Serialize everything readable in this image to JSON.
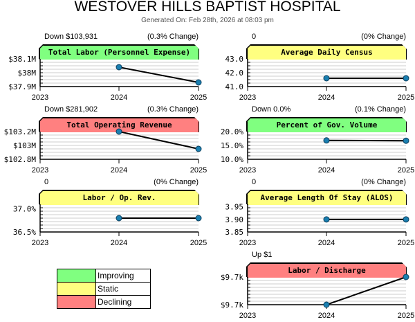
{
  "title": "WESTOVER HILLS BAPTIST HOSPITAL",
  "generated": "Generated On: Feb 28th, 2026 at 08:03 pm",
  "colors": {
    "Improving": "#80ff80",
    "Static": "#ffff80",
    "Declining": "#ff8080"
  },
  "legend": [
    {
      "label": "Improving",
      "color": "#80ff80"
    },
    {
      "label": "Static",
      "color": "#ffff80"
    },
    {
      "label": "Declining",
      "color": "#ff8080"
    }
  ],
  "chart_data": [
    {
      "type": "line",
      "title": "Total Labor (Personnel Expense)",
      "change": "Down $103,931",
      "pct": "(0.3% Change)",
      "status": "Improving",
      "x": [
        "2023",
        "2024",
        "2025"
      ],
      "y": [
        null,
        38.04,
        37.93
      ],
      "ylim": [
        37.9,
        38.1
      ],
      "yticks": [
        {
          "v": 38.1,
          "l": "$38.1M"
        },
        {
          "v": 38.0,
          "l": "$38M"
        },
        {
          "v": 37.9,
          "l": "$37.9M"
        }
      ]
    },
    {
      "type": "line",
      "title": "Average Daily Census",
      "change": "0",
      "pct": "(0% Change)",
      "status": "Static",
      "x": [
        "2023",
        "2024",
        "2025"
      ],
      "y": [
        null,
        41.6,
        41.6
      ],
      "ylim": [
        41,
        43
      ],
      "yticks": [
        {
          "v": 43,
          "l": "43.0"
        },
        {
          "v": 42,
          "l": "42.0"
        },
        {
          "v": 41,
          "l": "41.0"
        }
      ]
    },
    {
      "type": "line",
      "title": "Total Operating Revenue",
      "change": "Down $281,902",
      "pct": "(0.3% Change)",
      "status": "Declining",
      "x": [
        "2023",
        "2024",
        "2025"
      ],
      "y": [
        null,
        103.2,
        102.95
      ],
      "ylim": [
        102.8,
        103.2
      ],
      "yticks": [
        {
          "v": 103.2,
          "l": "$103.2M"
        },
        {
          "v": 103.0,
          "l": "$103M"
        },
        {
          "v": 102.8,
          "l": "$102.8M"
        }
      ]
    },
    {
      "type": "line",
      "title": "Percent of Gov. Volume",
      "change": "Down 0.0%",
      "pct": "(0.1% Change)",
      "status": "Improving",
      "x": [
        "2023",
        "2024",
        "2025"
      ],
      "y": [
        null,
        16.8,
        16.7
      ],
      "ylim": [
        10,
        20
      ],
      "yticks": [
        {
          "v": 20,
          "l": "20.0%"
        },
        {
          "v": 15,
          "l": "15.0%"
        },
        {
          "v": 10,
          "l": "10.0%"
        }
      ]
    },
    {
      "type": "line",
      "title": "Labor / Op. Rev.",
      "change": "0",
      "pct": "(0% Change)",
      "status": "Static",
      "x": [
        "2023",
        "2024",
        "2025"
      ],
      "y": [
        null,
        36.8,
        36.8
      ],
      "ylim": [
        36.5,
        37.1
      ],
      "yticks": [
        {
          "v": 37.0,
          "l": "37.0%"
        },
        {
          "v": 36.5,
          "l": "36.5%"
        }
      ]
    },
    {
      "type": "line",
      "title": "Average Length Of Stay (ALOS)",
      "change": "0",
      "pct": "(0% Change)",
      "status": "Static",
      "x": [
        "2023",
        "2024",
        "2025"
      ],
      "y": [
        null,
        3.9,
        3.9
      ],
      "ylim": [
        3.85,
        3.96
      ],
      "yticks": [
        {
          "v": 3.95,
          "l": "3.95"
        },
        {
          "v": 3.9,
          "l": "3.90"
        },
        {
          "v": 3.85,
          "l": "3.85"
        }
      ]
    },
    {
      "type": "line",
      "title": "Labor / Discharge",
      "change": "Up $1",
      "pct": "",
      "status": "Declining",
      "x": [
        "2023",
        "2024",
        "2025"
      ],
      "y": [
        null,
        9700,
        9701
      ],
      "ylim": [
        9700,
        9701
      ],
      "yticks": [
        {
          "v": 9701,
          "l": "$9.7k"
        },
        {
          "v": 9700,
          "l": "$9.7k"
        }
      ]
    }
  ]
}
